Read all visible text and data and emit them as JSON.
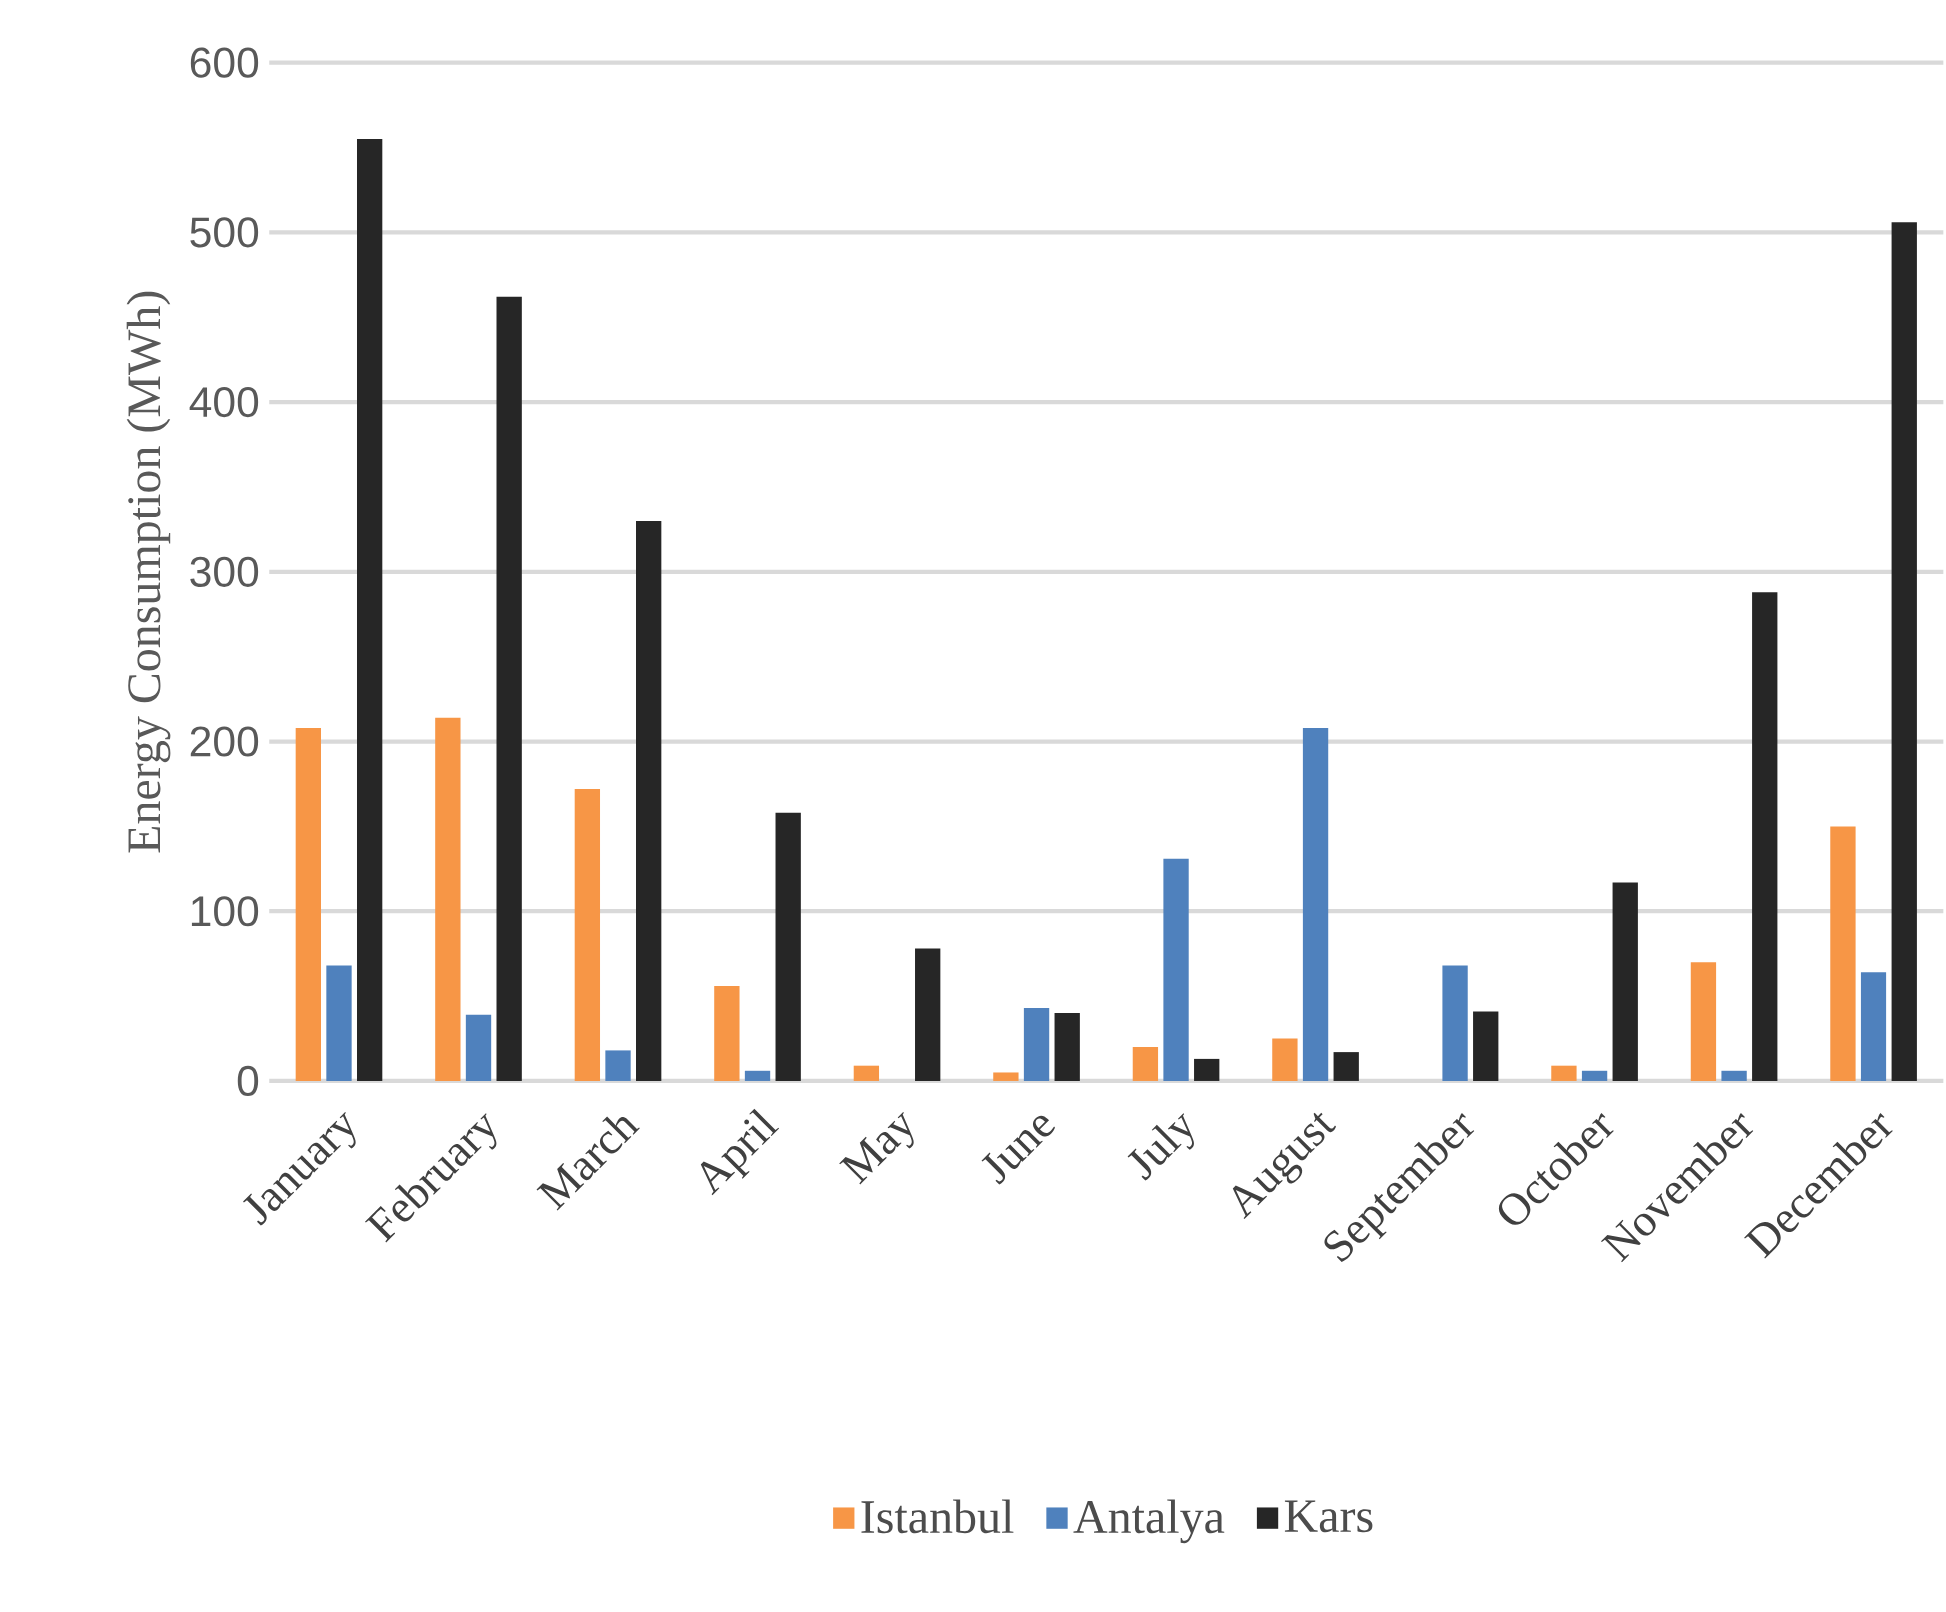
{
  "chart_data": {
    "type": "bar",
    "ylabel": "Energy Consumption (MWh)",
    "categories": [
      "January",
      "February",
      "March",
      "April",
      "May",
      "June",
      "July",
      "August",
      "September",
      "October",
      "November",
      "December"
    ],
    "series": [
      {
        "name": "Istanbul",
        "color": "#f79646",
        "values": [
          208,
          214,
          172,
          56,
          9,
          5,
          20,
          25,
          0,
          9,
          70,
          150
        ]
      },
      {
        "name": "Antalya",
        "color": "#4f81bd",
        "values": [
          68,
          39,
          18,
          6,
          0,
          43,
          131,
          208,
          68,
          6,
          6,
          64
        ]
      },
      {
        "name": "Kars",
        "color": "#262626",
        "values": [
          555,
          462,
          330,
          158,
          78,
          40,
          13,
          17,
          41,
          117,
          288,
          506
        ]
      }
    ],
    "ylim": [
      0,
      600
    ],
    "yticks": [
      0,
      100,
      200,
      300,
      400,
      500,
      600
    ],
    "grid": "y",
    "legend": "bottom"
  }
}
